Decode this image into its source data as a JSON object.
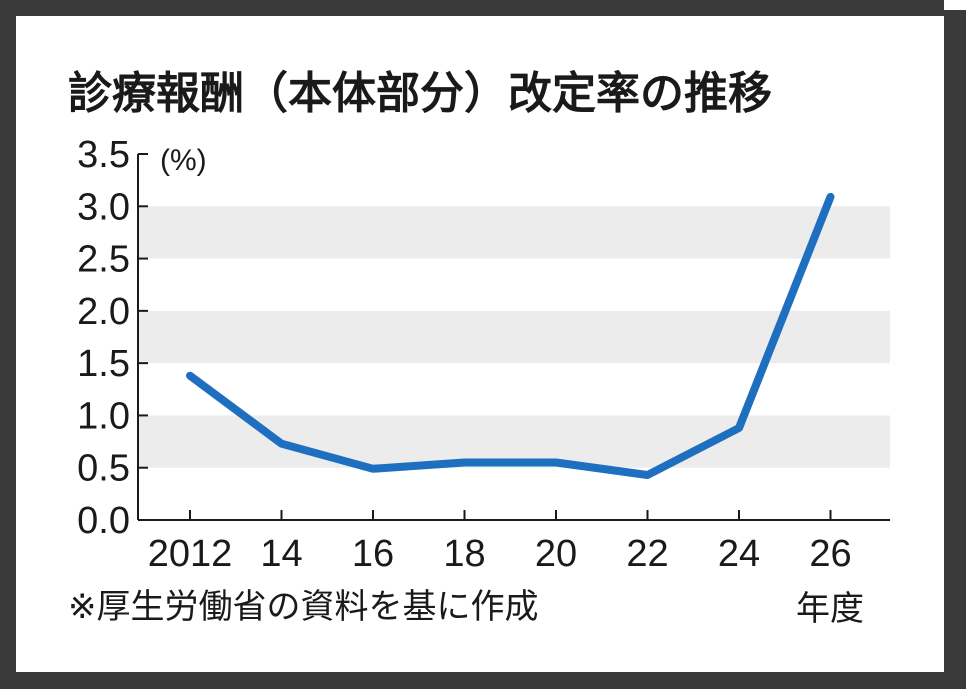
{
  "chart_data": {
    "type": "line",
    "title": "診療報酬（本体部分）改定率の推移",
    "unit_label": "(%)",
    "x_unit_label": "年度",
    "source_note": "※厚生労働省の資料を基に作成",
    "categories": [
      "2012",
      "14",
      "16",
      "18",
      "20",
      "22",
      "24",
      "26"
    ],
    "values": [
      1.38,
      0.73,
      0.49,
      0.55,
      0.55,
      0.43,
      0.88,
      3.09
    ],
    "ylim": [
      0,
      3.5
    ],
    "y_ticks": [
      "0.0",
      "0.5",
      "1.0",
      "1.5",
      "2.0",
      "2.5",
      "3.0",
      "3.5"
    ],
    "grid_bands": "alternating",
    "colors": {
      "line": "#1f6fc0",
      "band": "#ececec",
      "frame": "#3a3a3a"
    }
  }
}
